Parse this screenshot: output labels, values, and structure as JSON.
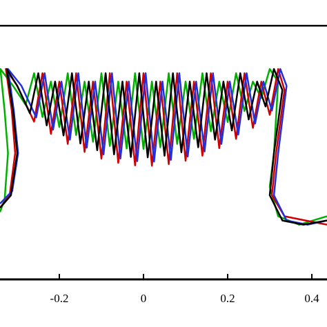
{
  "chart_data": {
    "type": "line",
    "xlim": [
      -0.341,
      0.436
    ],
    "ylim": [
      0,
      0.664
    ],
    "xticks": [
      -0.2,
      0,
      0.2,
      0.4
    ],
    "series": [
      {
        "color": "#000000",
        "x": [
          -0.341,
          0.436
        ],
        "y": [
          0.603,
          0.603
        ]
      },
      {
        "color": "#00b000",
        "x": [
          -0.341,
          -0.33,
          -0.322,
          -0.33,
          -0.34,
          -0.31,
          -0.28,
          -0.26,
          -0.24,
          -0.22,
          -0.2,
          -0.18,
          -0.16,
          -0.14,
          -0.12,
          -0.1,
          -0.08,
          -0.06,
          -0.04,
          -0.02,
          0.0,
          0.02,
          0.04,
          0.06,
          0.08,
          0.1,
          0.12,
          0.14,
          0.16,
          0.18,
          0.2,
          0.22,
          0.24,
          0.26,
          0.28,
          0.3,
          0.32,
          0.31,
          0.3,
          0.32,
          0.37,
          0.436
        ],
        "y": [
          0.16,
          0.19,
          0.3,
          0.4,
          0.5,
          0.46,
          0.415,
          0.49,
          0.386,
          0.47,
          0.362,
          0.49,
          0.343,
          0.47,
          0.327,
          0.49,
          0.317,
          0.47,
          0.311,
          0.49,
          0.31,
          0.47,
          0.314,
          0.49,
          0.322,
          0.47,
          0.334,
          0.49,
          0.352,
          0.47,
          0.374,
          0.49,
          0.4,
          0.47,
          0.431,
          0.5,
          0.47,
          0.3,
          0.22,
          0.15,
          0.13,
          0.15
        ]
      },
      {
        "color": "#d00000",
        "x": [
          -0.341,
          -0.318,
          -0.305,
          -0.313,
          -0.327,
          -0.3,
          -0.26,
          -0.24,
          -0.22,
          -0.2,
          -0.18,
          -0.16,
          -0.14,
          -0.12,
          -0.1,
          -0.08,
          -0.06,
          -0.04,
          -0.02,
          0.0,
          0.02,
          0.04,
          0.06,
          0.08,
          0.1,
          0.12,
          0.14,
          0.16,
          0.18,
          0.2,
          0.22,
          0.24,
          0.26,
          0.28,
          0.3,
          0.32,
          0.335,
          0.315,
          0.305,
          0.335,
          0.385,
          0.436
        ],
        "y": [
          0.17,
          0.2,
          0.3,
          0.4,
          0.5,
          0.46,
          0.375,
          0.49,
          0.346,
          0.47,
          0.322,
          0.49,
          0.303,
          0.47,
          0.287,
          0.49,
          0.277,
          0.47,
          0.271,
          0.49,
          0.27,
          0.47,
          0.274,
          0.49,
          0.282,
          0.47,
          0.294,
          0.49,
          0.312,
          0.47,
          0.334,
          0.49,
          0.36,
          0.47,
          0.391,
          0.5,
          0.45,
          0.3,
          0.2,
          0.15,
          0.14,
          0.13
        ]
      },
      {
        "color": "#2030e0",
        "x": [
          -0.341,
          -0.312,
          -0.298,
          -0.308,
          -0.322,
          -0.29,
          -0.255,
          -0.235,
          -0.215,
          -0.195,
          -0.175,
          -0.155,
          -0.135,
          -0.115,
          -0.095,
          -0.075,
          -0.055,
          -0.035,
          -0.015,
          0.005,
          0.025,
          0.045,
          0.065,
          0.085,
          0.105,
          0.125,
          0.145,
          0.165,
          0.185,
          0.205,
          0.225,
          0.245,
          0.265,
          0.285,
          0.305,
          0.325,
          0.34,
          0.32,
          0.31,
          0.34,
          0.39,
          0.436
        ],
        "y": [
          0.18,
          0.21,
          0.3,
          0.4,
          0.5,
          0.46,
          0.385,
          0.49,
          0.356,
          0.47,
          0.332,
          0.49,
          0.313,
          0.47,
          0.297,
          0.49,
          0.287,
          0.47,
          0.281,
          0.49,
          0.28,
          0.47,
          0.284,
          0.49,
          0.292,
          0.47,
          0.304,
          0.49,
          0.322,
          0.47,
          0.344,
          0.49,
          0.37,
          0.47,
          0.401,
          0.5,
          0.46,
          0.3,
          0.2,
          0.14,
          0.13,
          0.14
        ]
      },
      {
        "color": "#000000",
        "x": [
          -0.341,
          -0.315,
          -0.3,
          -0.31,
          -0.325,
          -0.3,
          -0.27,
          -0.25,
          -0.23,
          -0.21,
          -0.19,
          -0.17,
          -0.15,
          -0.13,
          -0.11,
          -0.09,
          -0.07,
          -0.05,
          -0.03,
          -0.01,
          0.01,
          0.03,
          0.05,
          0.07,
          0.09,
          0.11,
          0.13,
          0.15,
          0.17,
          0.19,
          0.21,
          0.23,
          0.25,
          0.27,
          0.29,
          0.31,
          0.33,
          0.31,
          0.3,
          0.33,
          0.38,
          0.436
        ],
        "y": [
          0.17,
          0.2,
          0.3,
          0.4,
          0.5,
          0.46,
          0.395,
          0.49,
          0.366,
          0.47,
          0.342,
          0.49,
          0.323,
          0.47,
          0.307,
          0.49,
          0.297,
          0.47,
          0.291,
          0.49,
          0.29,
          0.47,
          0.294,
          0.49,
          0.302,
          0.47,
          0.314,
          0.49,
          0.332,
          0.47,
          0.354,
          0.49,
          0.38,
          0.47,
          0.411,
          0.5,
          0.45,
          0.3,
          0.2,
          0.14,
          0.13,
          0.14
        ]
      }
    ]
  }
}
